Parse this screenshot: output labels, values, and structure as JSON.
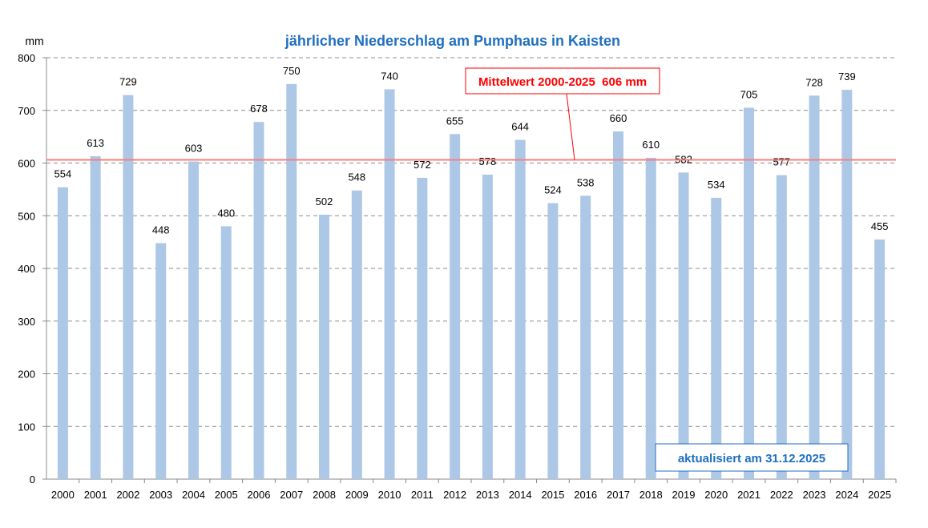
{
  "chart_data": {
    "type": "bar",
    "title": "jährlicher Niederschlag am Pumphaus in Kaisten",
    "ylabel": "mm",
    "xlabel": "",
    "ylim": [
      0,
      800
    ],
    "yticks": [
      0,
      100,
      200,
      300,
      400,
      500,
      600,
      700,
      800
    ],
    "grid": true,
    "categories": [
      "2000",
      "2001",
      "2002",
      "2003",
      "2004",
      "2005",
      "2006",
      "2007",
      "2008",
      "2009",
      "2010",
      "2011",
      "2012",
      "2013",
      "2014",
      "2015",
      "2016",
      "2017",
      "2018",
      "2019",
      "2020",
      "2021",
      "2022",
      "2023",
      "2024",
      "2025"
    ],
    "values": [
      554,
      613,
      729,
      448,
      603,
      480,
      678,
      750,
      502,
      548,
      740,
      572,
      655,
      578,
      644,
      524,
      538,
      660,
      610,
      582,
      534,
      705,
      577,
      728,
      739,
      455
    ],
    "mean": {
      "value": 606,
      "label": "Mittelwert 2000-2025  606 mm"
    },
    "annotation": "aktualisiert am 31.12.2025",
    "colors": {
      "bar": "#adc8e6",
      "mean_line": "#ff7c7c",
      "mean_text": "#ff0000",
      "title": "#1f6fc0",
      "grid": "#8c8c8c"
    }
  }
}
